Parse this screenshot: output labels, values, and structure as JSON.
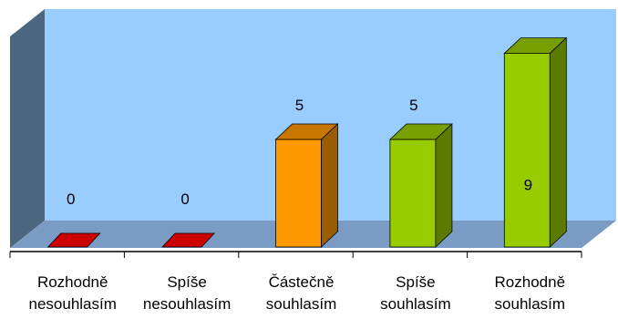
{
  "chart_data": {
    "type": "bar",
    "categories": [
      [
        "Rozhodně",
        "nesouhlasím"
      ],
      [
        "Spíše",
        "nesouhlasím"
      ],
      [
        "Částečně",
        "souhlasím"
      ],
      [
        "Spíše",
        "souhlasím"
      ],
      [
        "Rozhodně",
        "souhlasím"
      ]
    ],
    "values": [
      0,
      0,
      5,
      5,
      9
    ],
    "value_labels": [
      "0",
      "0",
      "5",
      "5",
      "9"
    ],
    "bar_colors": [
      "#cc0000",
      "#cc0000",
      "#ff9900",
      "#99cc00",
      "#99cc00"
    ],
    "ylim": [
      0,
      10
    ],
    "grid": false,
    "legend": "none",
    "title": "",
    "xlabel": "",
    "ylabel": ""
  },
  "colors": {
    "back_wall": "#99ccff",
    "side_wall": "#4d6680",
    "floor": "#7a9cc4",
    "outline": "#000000"
  }
}
